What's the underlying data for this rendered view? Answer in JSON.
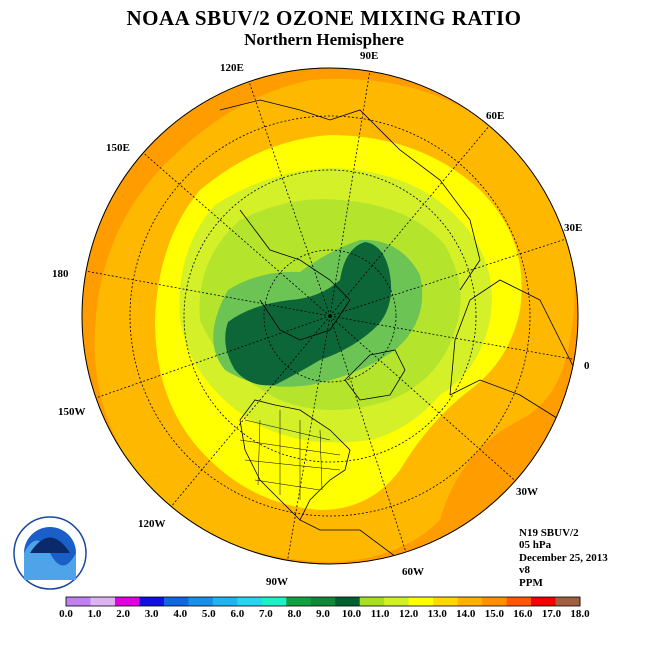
{
  "title": "NOAA SBUV/2 OZONE MIXING RATIO",
  "subtitle": "Northern Hemisphere",
  "lon_labels": [
    {
      "id": "lon-90e",
      "text": "90E"
    },
    {
      "id": "lon-60e",
      "text": "60E"
    },
    {
      "id": "lon-30e",
      "text": "30E"
    },
    {
      "id": "lon-0",
      "text": "0"
    },
    {
      "id": "lon-30w",
      "text": "30W"
    },
    {
      "id": "lon-60w",
      "text": "60W"
    },
    {
      "id": "lon-90w",
      "text": "90W"
    },
    {
      "id": "lon-120w",
      "text": "120W"
    },
    {
      "id": "lon-150w",
      "text": "150W"
    },
    {
      "id": "lon-180",
      "text": "180"
    },
    {
      "id": "lon-150e",
      "text": "150E"
    },
    {
      "id": "lon-120e",
      "text": "120E"
    }
  ],
  "info": {
    "instrument": "N19 SBUV/2",
    "level": "05 hPa",
    "date": "December 25, 2013",
    "version": "v8",
    "units": "PPM"
  },
  "colorbar": {
    "ticks": [
      "0.0",
      "1.0",
      "2.0",
      "3.0",
      "4.0",
      "5.0",
      "6.0",
      "7.0",
      "8.0",
      "9.0",
      "10.0",
      "11.0",
      "12.0",
      "13.0",
      "14.0",
      "15.0",
      "16.0",
      "17.0",
      "18.0"
    ],
    "colors": [
      "#c080f0",
      "#dcb4f4",
      "#e000e0",
      "#1010e0",
      "#1068e0",
      "#1890e8",
      "#20b4f0",
      "#28d4f0",
      "#20f0c8",
      "#10a040",
      "#108838",
      "#006030",
      "#a8e020",
      "#d0f028",
      "#ffff00",
      "#ffd800",
      "#ffb000",
      "#ff9000",
      "#ff5800",
      "#f00000",
      "#a06040"
    ]
  }
}
